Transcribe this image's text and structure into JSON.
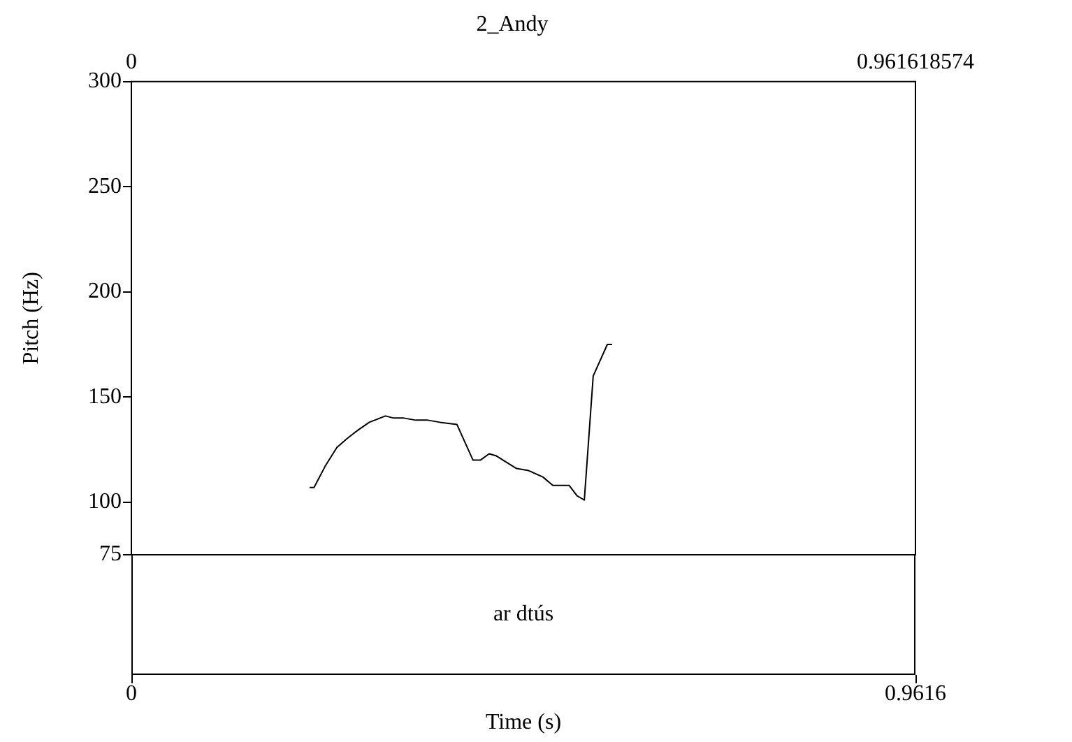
{
  "chart_data": {
    "type": "line",
    "title": "2_Andy",
    "xlabel": "Time (s)",
    "ylabel": "Pitch (Hz)",
    "x": [
      0.2186,
      0.224,
      0.2375,
      0.252,
      0.2637,
      0.277,
      0.2918,
      0.3116,
      0.3216,
      0.334,
      0.3487,
      0.3636,
      0.3784,
      0.3992,
      0.419,
      0.4279,
      0.4388,
      0.4477,
      0.46,
      0.4724,
      0.4872,
      0.5046,
      0.5169,
      0.5368,
      0.5466,
      0.5555,
      0.5664,
      0.5837,
      0.5896
    ],
    "series": [
      {
        "color": "#000000",
        "values": [
          107,
          107,
          117,
          126,
          130,
          134,
          138,
          141,
          140,
          140,
          139,
          139,
          138,
          137,
          120,
          120,
          123,
          122,
          119,
          116,
          115,
          112,
          108,
          108,
          103,
          101,
          160,
          175,
          175
        ]
      }
    ],
    "xlim": [
      0,
      0.961618574
    ],
    "xticks": [
      0,
      {
        "value": 0.961618574,
        "label": "0.9616"
      }
    ],
    "x2lim": [
      0,
      0.961618574
    ],
    "x2ticks": [
      0,
      0.961618574
    ],
    "ylim": [
      75,
      300
    ],
    "yticks": [
      75,
      100,
      150,
      200,
      250,
      300
    ],
    "grid": false,
    "marker": "none",
    "line_style": "solid",
    "annotations": [
      "ar dtús"
    ]
  }
}
